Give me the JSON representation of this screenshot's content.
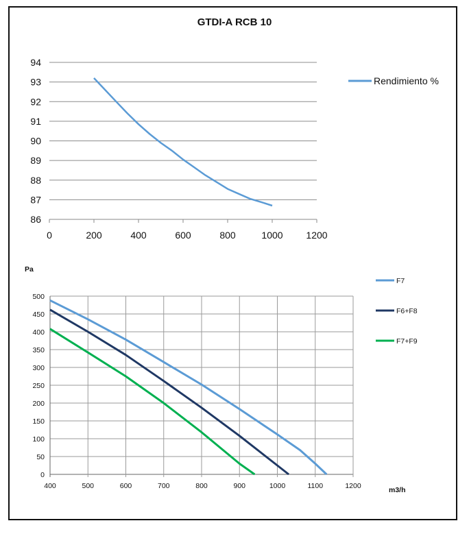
{
  "chart_data": [
    {
      "type": "line",
      "title": "GTDI-A RCB 10",
      "xlabel": "",
      "ylabel": "",
      "xlim": [
        0,
        1200
      ],
      "ylim": [
        86,
        94
      ],
      "x_ticks": [
        0,
        200,
        400,
        600,
        800,
        1000,
        1200
      ],
      "y_ticks": [
        86,
        87,
        88,
        89,
        90,
        91,
        92,
        93,
        94
      ],
      "grid": "horizontal",
      "legend_position": "right",
      "series": [
        {
          "name": "Rendimiento %",
          "color": "#5b9bd5",
          "x": [
            200,
            250,
            300,
            350,
            400,
            450,
            500,
            550,
            600,
            650,
            700,
            750,
            800,
            850,
            900,
            950,
            1000
          ],
          "y": [
            93.2,
            92.6,
            92.0,
            91.4,
            90.85,
            90.35,
            89.9,
            89.5,
            89.05,
            88.65,
            88.25,
            87.9,
            87.55,
            87.3,
            87.05,
            86.88,
            86.7
          ]
        }
      ]
    },
    {
      "type": "line",
      "title": "",
      "xlabel": "m3/h",
      "ylabel": "Pa",
      "xlim": [
        400,
        1200
      ],
      "ylim": [
        0,
        500
      ],
      "x_ticks": [
        400,
        500,
        600,
        700,
        800,
        900,
        1000,
        1100,
        1200
      ],
      "y_ticks": [
        0,
        50,
        100,
        150,
        200,
        250,
        300,
        350,
        400,
        450,
        500
      ],
      "grid": "both",
      "legend_position": "right",
      "series": [
        {
          "name": "F7",
          "color": "#5b9bd5",
          "x": [
            400,
            500,
            600,
            700,
            800,
            900,
            1000,
            1060,
            1100,
            1130
          ],
          "y": [
            488,
            435,
            378,
            315,
            252,
            183,
            112,
            68,
            30,
            0
          ]
        },
        {
          "name": "F6+F8",
          "color": "#1f3864",
          "x": [
            400,
            500,
            600,
            700,
            800,
            900,
            1000,
            1030
          ],
          "y": [
            462,
            400,
            335,
            262,
            187,
            108,
            25,
            0
          ]
        },
        {
          "name": "F7+F9",
          "color": "#00b050",
          "x": [
            400,
            500,
            600,
            700,
            800,
            900,
            940
          ],
          "y": [
            408,
            342,
            275,
            200,
            118,
            30,
            0
          ]
        }
      ]
    }
  ]
}
